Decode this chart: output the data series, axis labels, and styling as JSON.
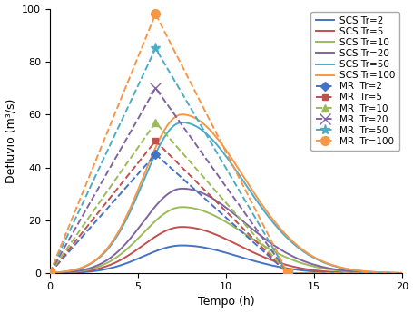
{
  "ylabel": "Defluvio (m³/s)",
  "xlabel": "Tempo (h)",
  "xlim": [
    0,
    20
  ],
  "ylim": [
    0,
    100
  ],
  "xticks": [
    0,
    5,
    10,
    15,
    20
  ],
  "yticks": [
    0,
    20,
    40,
    60,
    80,
    100
  ],
  "colors": [
    "#4472C4",
    "#C0504D",
    "#9BBB59",
    "#8064A2",
    "#4BACC6",
    "#F79646"
  ],
  "tr_values": [
    2,
    5,
    10,
    20,
    50,
    100
  ],
  "scs_peaks": [
    10.5,
    17.5,
    25.0,
    32.0,
    57.0,
    60.0
  ],
  "scs_peak_t": [
    7.5,
    7.5,
    7.5,
    7.5,
    7.5,
    7.5
  ],
  "scs_sigma_rise": [
    2.2,
    2.2,
    2.2,
    2.2,
    2.2,
    2.2
  ],
  "scs_sigma_fall": [
    3.2,
    3.2,
    3.5,
    3.5,
    3.5,
    3.5
  ],
  "mr_peaks": [
    45.0,
    50.0,
    57.0,
    70.0,
    85.0,
    98.0
  ],
  "mr_peak_t": [
    6.0,
    6.0,
    6.0,
    6.0,
    6.0,
    6.0
  ],
  "mr_start": [
    0.0,
    0.0,
    0.0,
    0.0,
    0.0,
    0.0
  ],
  "mr_end": [
    13.5,
    13.5,
    13.5,
    13.5,
    13.5,
    13.5
  ],
  "mr_markers": [
    "D",
    "s",
    "^",
    "x",
    "*",
    "o"
  ],
  "mr_marker_sizes": [
    5,
    5,
    6,
    8,
    8,
    7
  ],
  "background": "#FFFFFF",
  "legend_fontsize": 7.5,
  "axis_fontsize": 9,
  "tick_fontsize": 8,
  "linewidth": 1.4
}
